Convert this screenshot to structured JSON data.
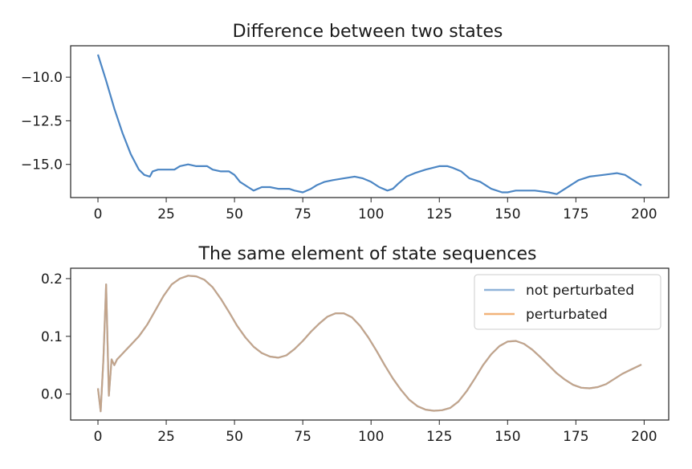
{
  "chart_data": [
    {
      "type": "line",
      "title": "Difference between two states",
      "xlabel": "",
      "ylabel": "",
      "xlim": [
        -10,
        209
      ],
      "ylim": [
        -16.9,
        -8.2
      ],
      "x_ticks": [
        0,
        25,
        50,
        75,
        100,
        125,
        150,
        175,
        200
      ],
      "x_tick_labels": [
        "0",
        "25",
        "50",
        "75",
        "100",
        "125",
        "150",
        "175",
        "200"
      ],
      "y_ticks": [
        -10.0,
        -12.5,
        -15.0
      ],
      "y_tick_labels": [
        "−10.0",
        "−12.5",
        "−15.0"
      ],
      "grid": false,
      "series": [
        {
          "color": "#4c86c4",
          "opacity": 1,
          "x": [
            0,
            3,
            6,
            9,
            12,
            15,
            17,
            19,
            20,
            22,
            25,
            28,
            30,
            33,
            36,
            40,
            42,
            45,
            48,
            50,
            52,
            55,
            57,
            60,
            63,
            66,
            70,
            72,
            75,
            78,
            80,
            83,
            86,
            90,
            94,
            97,
            100,
            103,
            106,
            108,
            110,
            113,
            116,
            120,
            125,
            128,
            130,
            133,
            136,
            140,
            144,
            148,
            150,
            153,
            156,
            160,
            165,
            168,
            170,
            173,
            176,
            180,
            185,
            190,
            193,
            196,
            199
          ],
          "y": [
            -8.7,
            -10.2,
            -11.8,
            -13.2,
            -14.4,
            -15.3,
            -15.6,
            -15.7,
            -15.4,
            -15.3,
            -15.3,
            -15.3,
            -15.1,
            -15.0,
            -15.1,
            -15.1,
            -15.3,
            -15.4,
            -15.4,
            -15.6,
            -16.0,
            -16.3,
            -16.5,
            -16.3,
            -16.3,
            -16.4,
            -16.4,
            -16.5,
            -16.6,
            -16.4,
            -16.2,
            -16.0,
            -15.9,
            -15.8,
            -15.7,
            -15.8,
            -16.0,
            -16.3,
            -16.5,
            -16.4,
            -16.1,
            -15.7,
            -15.5,
            -15.3,
            -15.1,
            -15.1,
            -15.2,
            -15.4,
            -15.8,
            -16.0,
            -16.4,
            -16.6,
            -16.6,
            -16.5,
            -16.5,
            -16.5,
            -16.6,
            -16.7,
            -16.5,
            -16.2,
            -15.9,
            -15.7,
            -15.6,
            -15.5,
            -15.6,
            -15.9,
            -16.2
          ]
        }
      ]
    },
    {
      "type": "line",
      "title": "The same element of state sequences",
      "xlabel": "",
      "ylabel": "",
      "xlim": [
        -10,
        209
      ],
      "ylim": [
        -0.045,
        0.218
      ],
      "x_ticks": [
        0,
        25,
        50,
        75,
        100,
        125,
        150,
        175,
        200
      ],
      "x_tick_labels": [
        "0",
        "25",
        "50",
        "75",
        "100",
        "125",
        "150",
        "175",
        "200"
      ],
      "y_ticks": [
        0.0,
        0.1,
        0.2
      ],
      "y_tick_labels": [
        "0.0",
        "0.1",
        "0.2"
      ],
      "grid": false,
      "legend": {
        "position": "top-right",
        "entries": [
          "not perturbated",
          "perturbated"
        ]
      },
      "series": [
        {
          "name": "not perturbated",
          "color": "#8fb3d9",
          "opacity": 0.9,
          "x": [
            0,
            1,
            2,
            3,
            4,
            5,
            6,
            7,
            8,
            10,
            12,
            15,
            18,
            21,
            24,
            27,
            30,
            33,
            36,
            39,
            42,
            45,
            48,
            51,
            54,
            57,
            60,
            63,
            66,
            69,
            72,
            75,
            78,
            81,
            84,
            87,
            90,
            93,
            96,
            99,
            102,
            105,
            108,
            111,
            114,
            117,
            120,
            123,
            126,
            129,
            132,
            135,
            138,
            141,
            144,
            147,
            150,
            153,
            156,
            159,
            162,
            165,
            168,
            171,
            174,
            177,
            180,
            183,
            186,
            189,
            192,
            195,
            199
          ],
          "y": [
            0.01,
            -0.03,
            0.06,
            0.19,
            -0.003,
            0.06,
            0.05,
            0.06,
            0.065,
            0.075,
            0.085,
            0.1,
            0.12,
            0.145,
            0.17,
            0.19,
            0.2,
            0.205,
            0.204,
            0.198,
            0.185,
            0.165,
            0.142,
            0.118,
            0.098,
            0.082,
            0.071,
            0.065,
            0.063,
            0.067,
            0.078,
            0.092,
            0.108,
            0.122,
            0.134,
            0.14,
            0.14,
            0.133,
            0.118,
            0.098,
            0.075,
            0.05,
            0.027,
            0.007,
            -0.01,
            -0.021,
            -0.027,
            -0.029,
            -0.028,
            -0.024,
            -0.013,
            0.005,
            0.027,
            0.05,
            0.069,
            0.083,
            0.091,
            0.092,
            0.087,
            0.077,
            0.064,
            0.05,
            0.036,
            0.025,
            0.016,
            0.011,
            0.01,
            0.012,
            0.017,
            0.026,
            0.035,
            0.042,
            0.051
          ]
        },
        {
          "name": "perturbated",
          "color": "#f2b37a",
          "opacity": 0.9,
          "x": [
            0,
            1,
            2,
            3,
            4,
            5,
            6,
            7,
            8,
            10,
            12,
            15,
            18,
            21,
            24,
            27,
            30,
            33,
            36,
            39,
            42,
            45,
            48,
            51,
            54,
            57,
            60,
            63,
            66,
            69,
            72,
            75,
            78,
            81,
            84,
            87,
            90,
            93,
            96,
            99,
            102,
            105,
            108,
            111,
            114,
            117,
            120,
            123,
            126,
            129,
            132,
            135,
            138,
            141,
            144,
            147,
            150,
            153,
            156,
            159,
            162,
            165,
            168,
            171,
            174,
            177,
            180,
            183,
            186,
            189,
            192,
            195,
            199
          ],
          "y": [
            0.01,
            -0.03,
            0.06,
            0.19,
            -0.003,
            0.06,
            0.05,
            0.06,
            0.065,
            0.075,
            0.085,
            0.1,
            0.12,
            0.145,
            0.17,
            0.19,
            0.2,
            0.205,
            0.204,
            0.198,
            0.185,
            0.165,
            0.142,
            0.118,
            0.098,
            0.082,
            0.071,
            0.065,
            0.063,
            0.067,
            0.078,
            0.092,
            0.108,
            0.122,
            0.134,
            0.14,
            0.14,
            0.133,
            0.118,
            0.098,
            0.075,
            0.05,
            0.027,
            0.007,
            -0.01,
            -0.021,
            -0.027,
            -0.029,
            -0.028,
            -0.024,
            -0.013,
            0.005,
            0.027,
            0.05,
            0.069,
            0.083,
            0.091,
            0.092,
            0.087,
            0.077,
            0.064,
            0.05,
            0.036,
            0.025,
            0.016,
            0.011,
            0.01,
            0.012,
            0.017,
            0.026,
            0.035,
            0.042,
            0.051
          ]
        }
      ],
      "overlap_color": "#c7a282"
    }
  ]
}
